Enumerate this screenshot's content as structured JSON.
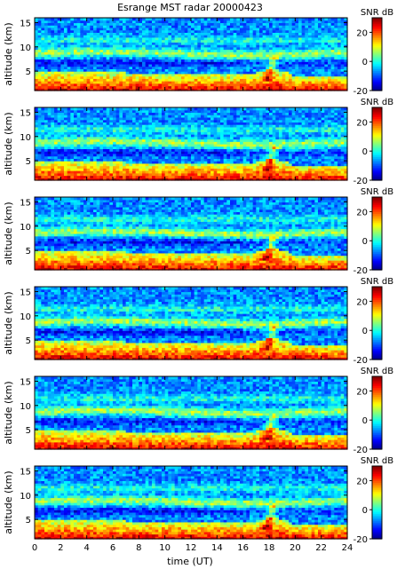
{
  "title": "Esrange MST radar 20000423",
  "chart_data": {
    "type": "heatmap",
    "title": "Esrange MST radar 20000423",
    "xlabel": "time (UT)",
    "ylabel": "altitude (km)",
    "xlim": [
      0,
      24
    ],
    "ylim": [
      1,
      16
    ],
    "x_ticks": [
      0,
      2,
      4,
      6,
      8,
      10,
      12,
      14,
      16,
      18,
      20,
      22,
      24
    ],
    "y_ticks": [
      5,
      10,
      15
    ],
    "colorbar": {
      "label": "SNR dB",
      "range": [
        -20,
        30
      ],
      "ticks": [
        -20,
        0,
        20
      ],
      "colormap": "jet"
    },
    "panel_count": 6,
    "features": {
      "surface_layer_top_km": 4.5,
      "tropopause_band_km": [
        8,
        9.5
      ],
      "noise_band_km": [
        6,
        7.5
      ],
      "cusp_time_ut": 17.5
    }
  }
}
